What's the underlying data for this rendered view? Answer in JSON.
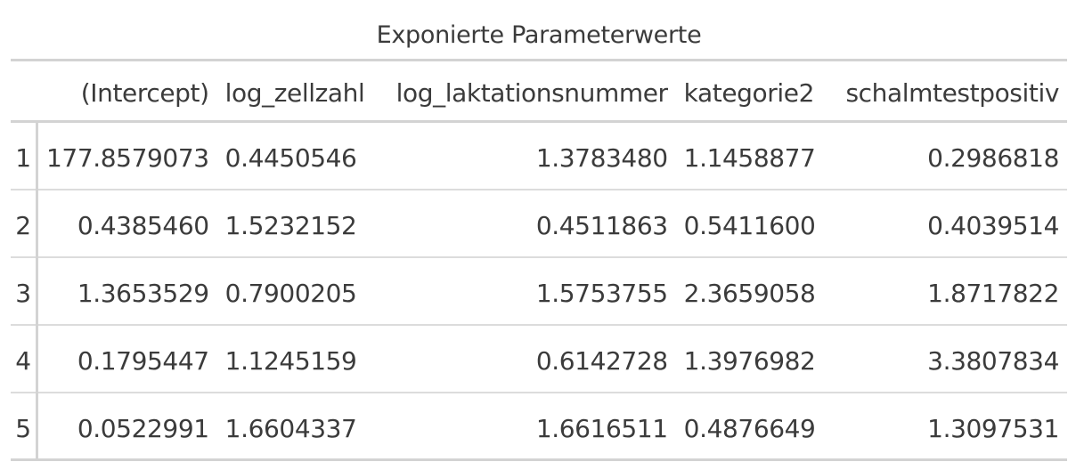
{
  "caption": "Exponierte Parameterwerte",
  "columns": {
    "stub": "",
    "intercept": "(Intercept)",
    "zellzahl": "log_zellzahl",
    "laktation": "log_laktationsnummer",
    "kategorie": "kategorie2",
    "schalm": "schalmtestpositiv"
  },
  "rows": [
    {
      "id": "1",
      "intercept": "177.8579073",
      "zellzahl": "0.4450546",
      "laktation": "1.3783480",
      "kategorie": "1.1458877",
      "schalm": "0.2986818"
    },
    {
      "id": "2",
      "intercept": "0.4385460",
      "zellzahl": "1.5232152",
      "laktation": "0.4511863",
      "kategorie": "0.5411600",
      "schalm": "0.4039514"
    },
    {
      "id": "3",
      "intercept": "1.3653529",
      "zellzahl": "0.7900205",
      "laktation": "1.5753755",
      "kategorie": "2.3659058",
      "schalm": "1.8717822"
    },
    {
      "id": "4",
      "intercept": "0.1795447",
      "zellzahl": "1.1245159",
      "laktation": "0.6142728",
      "kategorie": "1.3976982",
      "schalm": "3.3807834"
    },
    {
      "id": "5",
      "intercept": "0.0522991",
      "zellzahl": "1.6604337",
      "laktation": "1.6616511",
      "kategorie": "0.4876649",
      "schalm": "1.3097531"
    }
  ]
}
